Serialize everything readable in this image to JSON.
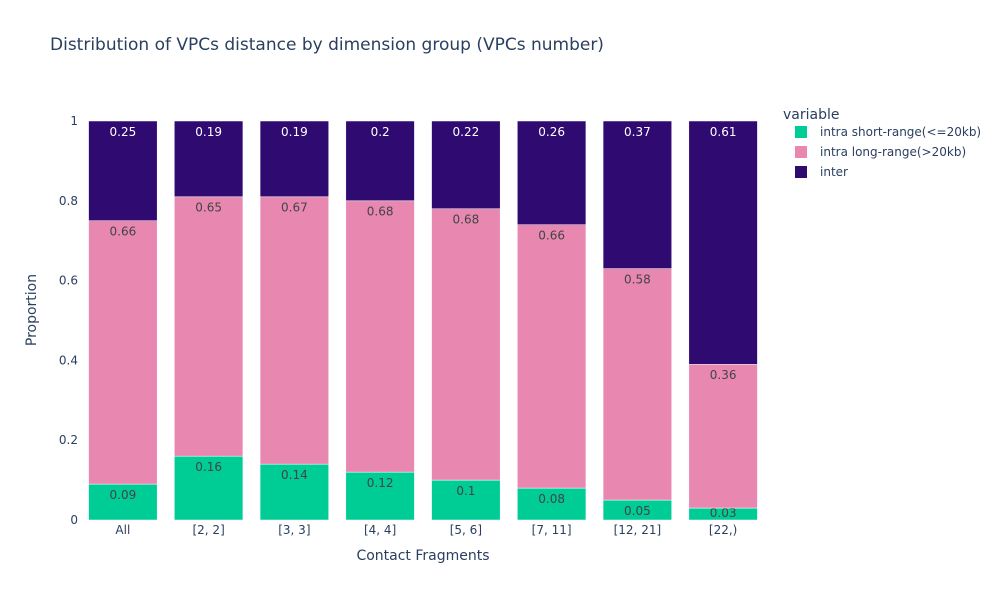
{
  "chart_data": {
    "type": "bar",
    "stacked": true,
    "title": "Distribution of VPCs distance by dimension group (VPCs number)",
    "xlabel": "Contact Fragments",
    "ylabel": "Proportion",
    "ylim": [
      0,
      1
    ],
    "yticks": [
      "0",
      "0.2",
      "0.4",
      "0.6",
      "0.8",
      "1"
    ],
    "categories": [
      "All",
      "[2, 2]",
      "[3, 3]",
      "[4, 4]",
      "[5, 6]",
      "[7, 11]",
      "[12, 21]",
      "[22,)"
    ],
    "legend": {
      "title": "variable",
      "position": "right"
    },
    "series": [
      {
        "name": "intra short-range(<=20kb)",
        "color": "#00cc96",
        "label_color": "#444444",
        "values": [
          0.09,
          0.16,
          0.14,
          0.12,
          0.1,
          0.08,
          0.05,
          0.03
        ],
        "labels": [
          "0.09",
          "0.16",
          "0.14",
          "0.12",
          "0.1",
          "0.08",
          "0.05",
          "0.03"
        ]
      },
      {
        "name": "intra long-range(>20kb)",
        "color": "#e888b1",
        "label_color": "#444444",
        "values": [
          0.66,
          0.65,
          0.67,
          0.68,
          0.68,
          0.66,
          0.58,
          0.36
        ],
        "labels": [
          "0.66",
          "0.65",
          "0.67",
          "0.68",
          "0.68",
          "0.66",
          "0.58",
          "0.36"
        ]
      },
      {
        "name": "inter",
        "color": "#2f0a70",
        "label_color": "#ffffff",
        "values": [
          0.25,
          0.19,
          0.19,
          0.2,
          0.22,
          0.26,
          0.37,
          0.61
        ],
        "labels": [
          "0.25",
          "0.19",
          "0.19",
          "0.2",
          "0.22",
          "0.26",
          "0.37",
          "0.61"
        ]
      }
    ]
  }
}
